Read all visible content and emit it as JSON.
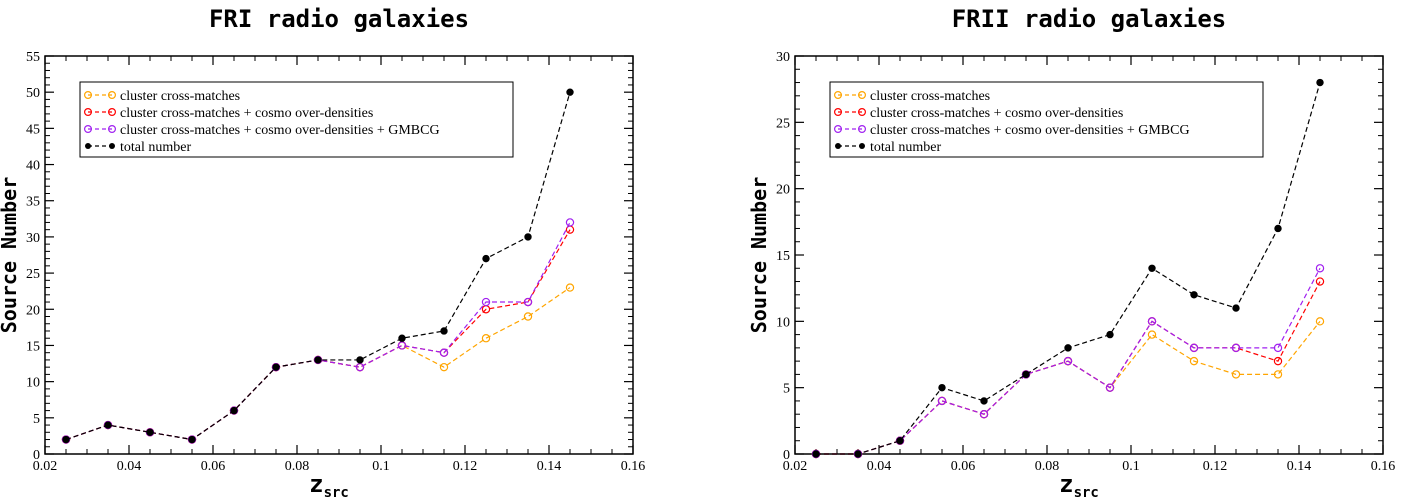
{
  "chart_data": [
    {
      "type": "line",
      "title": "FRI radio galaxies",
      "xlabel": "z",
      "xlabel_sub": "src",
      "ylabel": "Source Number",
      "xlim": [
        0.02,
        0.16
      ],
      "ylim": [
        0,
        55
      ],
      "xticks": [
        "0.02",
        "0.04",
        "0.06",
        "0.08",
        "0.1",
        "0.12",
        "0.14",
        "0.16"
      ],
      "yticks": [
        "0",
        "5",
        "10",
        "15",
        "20",
        "25",
        "30",
        "35",
        "40",
        "45",
        "50",
        "55"
      ],
      "grid": false,
      "legend_position": "top-left",
      "series": [
        {
          "name": "cluster cross-matches",
          "color": "#FFA500",
          "marker": "open-circle",
          "x": [
            0.025,
            0.035,
            0.045,
            0.055,
            0.065,
            0.075,
            0.085,
            0.095,
            0.105,
            0.115,
            0.125,
            0.135,
            0.145
          ],
          "y": [
            2,
            4,
            3,
            2,
            6,
            12,
            13,
            12,
            15,
            12,
            16,
            19,
            23
          ]
        },
        {
          "name": "cluster cross-matches + cosmo over-densities",
          "color": "#FF0000",
          "marker": "open-circle",
          "x": [
            0.025,
            0.035,
            0.045,
            0.055,
            0.065,
            0.075,
            0.085,
            0.095,
            0.105,
            0.115,
            0.125,
            0.135,
            0.145
          ],
          "y": [
            2,
            4,
            3,
            2,
            6,
            12,
            13,
            12,
            15,
            14,
            20,
            21,
            31
          ]
        },
        {
          "name": "cluster cross-matches + cosmo over-densities + GMBCG",
          "color": "#A020F0",
          "marker": "open-circle",
          "x": [
            0.025,
            0.035,
            0.045,
            0.055,
            0.065,
            0.075,
            0.085,
            0.095,
            0.105,
            0.115,
            0.125,
            0.135,
            0.145
          ],
          "y": [
            2,
            4,
            3,
            2,
            6,
            12,
            13,
            12,
            15,
            14,
            21,
            21,
            32
          ]
        },
        {
          "name": "total number",
          "color": "#000000",
          "marker": "filled-circle",
          "x": [
            0.025,
            0.035,
            0.045,
            0.055,
            0.065,
            0.075,
            0.085,
            0.095,
            0.105,
            0.115,
            0.125,
            0.135,
            0.145
          ],
          "y": [
            2,
            4,
            3,
            2,
            6,
            12,
            13,
            13,
            16,
            17,
            27,
            30,
            50
          ]
        }
      ]
    },
    {
      "type": "line",
      "title": "FRII radio galaxies",
      "xlabel": "z",
      "xlabel_sub": "src",
      "ylabel": "Source Number",
      "xlim": [
        0.02,
        0.16
      ],
      "ylim": [
        0,
        30
      ],
      "xticks": [
        "0.02",
        "0.04",
        "0.06",
        "0.08",
        "0.1",
        "0.12",
        "0.14",
        "0.16"
      ],
      "yticks": [
        "0",
        "5",
        "10",
        "15",
        "20",
        "25",
        "30"
      ],
      "grid": false,
      "legend_position": "top-left",
      "series": [
        {
          "name": "cluster cross-matches",
          "color": "#FFA500",
          "marker": "open-circle",
          "x": [
            0.025,
            0.035,
            0.045,
            0.055,
            0.065,
            0.075,
            0.085,
            0.095,
            0.105,
            0.115,
            0.125,
            0.135,
            0.145
          ],
          "y": [
            0,
            0,
            1,
            4,
            3,
            6,
            7,
            5,
            9,
            7,
            6,
            6,
            10
          ]
        },
        {
          "name": "cluster cross-matches + cosmo over-densities",
          "color": "#FF0000",
          "marker": "open-circle",
          "x": [
            0.025,
            0.035,
            0.045,
            0.055,
            0.065,
            0.075,
            0.085,
            0.095,
            0.105,
            0.115,
            0.125,
            0.135,
            0.145
          ],
          "y": [
            0,
            0,
            1,
            4,
            3,
            6,
            7,
            5,
            10,
            8,
            8,
            7,
            13
          ]
        },
        {
          "name": "cluster cross-matches + cosmo over-densities + GMBCG",
          "color": "#A020F0",
          "marker": "open-circle",
          "x": [
            0.025,
            0.035,
            0.045,
            0.055,
            0.065,
            0.075,
            0.085,
            0.095,
            0.105,
            0.115,
            0.125,
            0.135,
            0.145
          ],
          "y": [
            0,
            0,
            1,
            4,
            3,
            6,
            7,
            5,
            10,
            8,
            8,
            8,
            14
          ]
        },
        {
          "name": "total number",
          "color": "#000000",
          "marker": "filled-circle",
          "x": [
            0.025,
            0.035,
            0.045,
            0.055,
            0.065,
            0.075,
            0.085,
            0.095,
            0.105,
            0.115,
            0.125,
            0.135,
            0.145
          ],
          "y": [
            0,
            0,
            1,
            5,
            4,
            6,
            8,
            9,
            14,
            12,
            11,
            17,
            28
          ]
        }
      ]
    }
  ]
}
